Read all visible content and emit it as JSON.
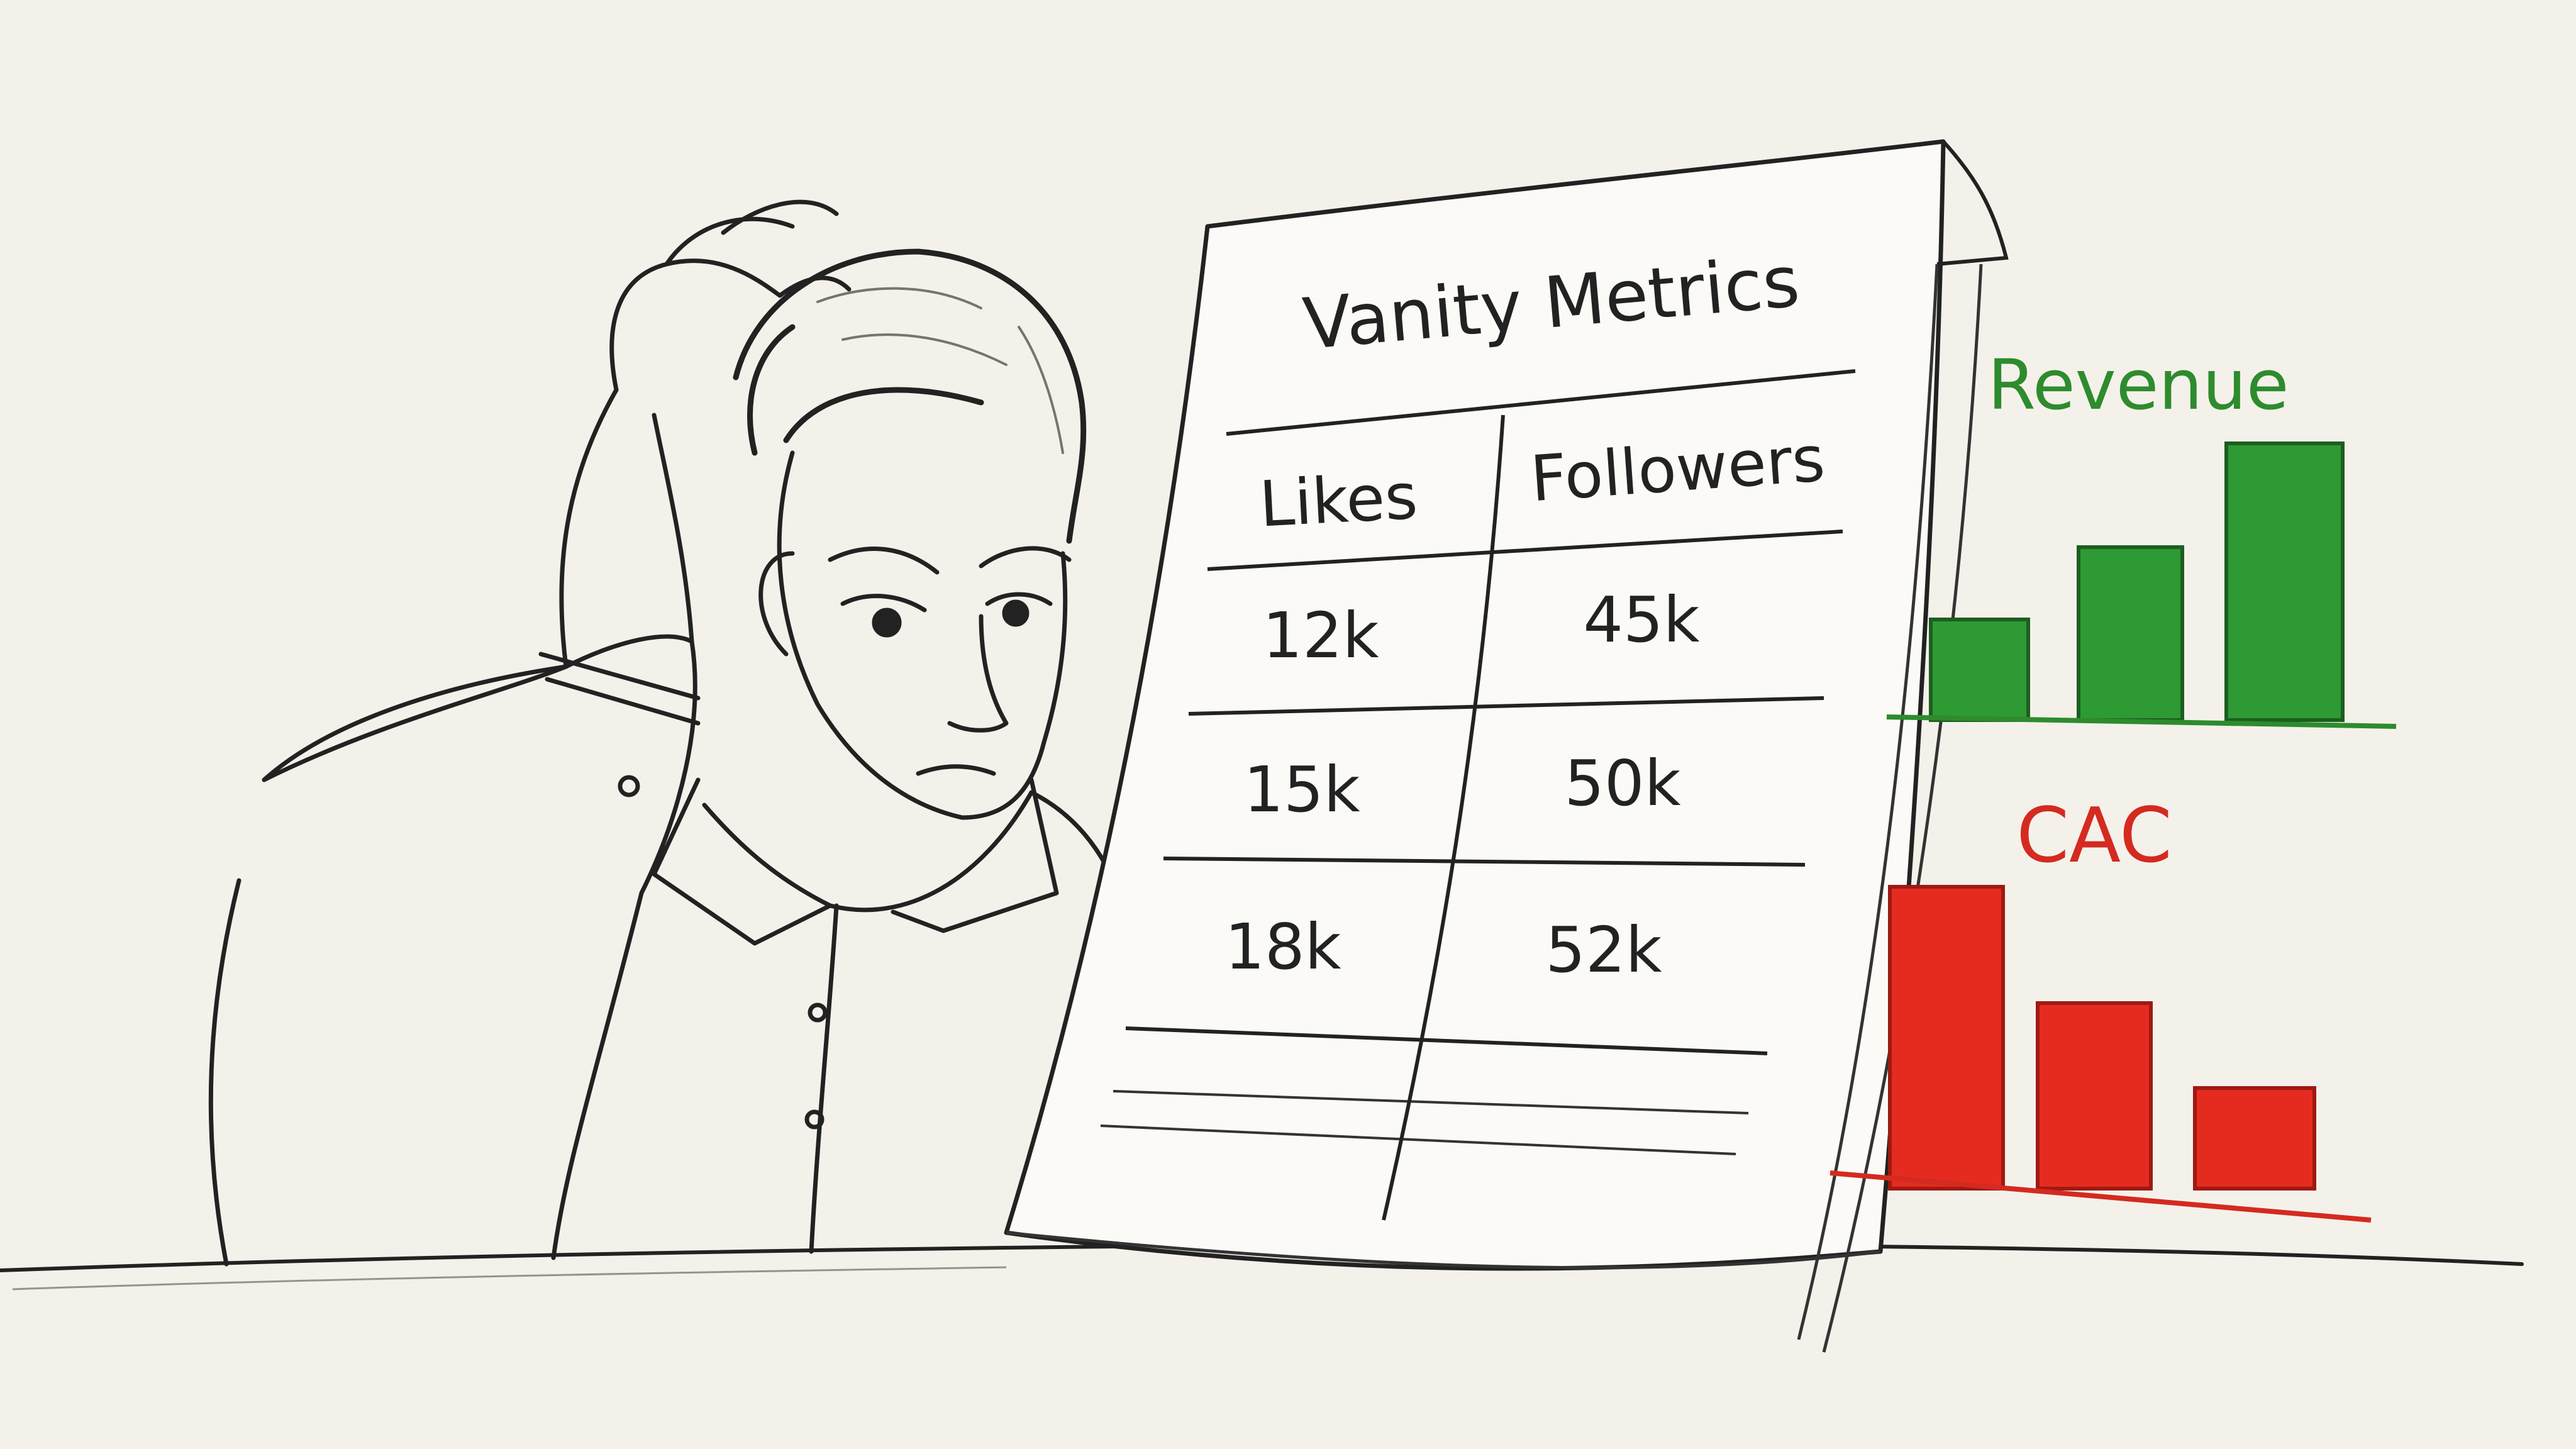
{
  "sheet": {
    "title": "Vanity Metrics",
    "columns": [
      "Likes",
      "Followers"
    ],
    "rows": [
      [
        "12k",
        "45k"
      ],
      [
        "15k",
        "50k"
      ],
      [
        "18k",
        "52k"
      ]
    ]
  },
  "charts": {
    "revenue": {
      "label": "Revenue",
      "color": "#2e8b2e",
      "bars": 3,
      "trend": "increasing"
    },
    "cac": {
      "label": "CAC",
      "color": "#d42a20",
      "bars": 3,
      "trend": "decreasing"
    }
  },
  "ink_color": "#222222"
}
